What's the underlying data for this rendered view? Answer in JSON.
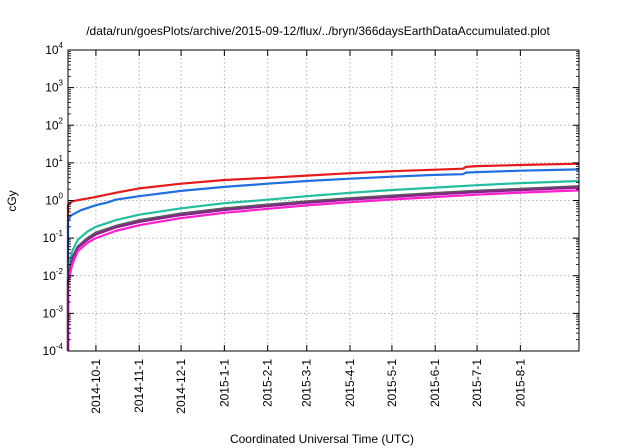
{
  "chart_data": {
    "type": "line",
    "title": "/data/run/goesPlots/archive/2015-09-12/flux/../bryn/366daysEarthDataAccumulated.plot",
    "xlabel": "Coordinated Universal Time (UTC)",
    "ylabel": "cGy",
    "y_scale": "log",
    "ylim": [
      0.0001,
      10000
    ],
    "xlim": [
      "2014-09-11",
      "2015-09-12"
    ],
    "grid": true,
    "legend": "none",
    "x_ticks": [
      "2014-10-1",
      "2014-11-1",
      "2014-12-1",
      "2015-1-1",
      "2015-2-1",
      "2015-3-1",
      "2015-4-1",
      "2015-5-1",
      "2015-6-1",
      "2015-7-1",
      "2015-8-1"
    ],
    "y_ticks": [
      {
        "value": 0.0001,
        "base": "10",
        "exp": "-4"
      },
      {
        "value": 0.001,
        "base": "10",
        "exp": "-3"
      },
      {
        "value": 0.01,
        "base": "10",
        "exp": "-2"
      },
      {
        "value": 0.1,
        "base": "10",
        "exp": "-1"
      },
      {
        "value": 1,
        "base": "10",
        "exp": "0"
      },
      {
        "value": 10,
        "base": "10",
        "exp": "1"
      },
      {
        "value": 100,
        "base": "10",
        "exp": "2"
      },
      {
        "value": 1000,
        "base": "10",
        "exp": "3"
      },
      {
        "value": 10000,
        "base": "10",
        "exp": "4"
      }
    ],
    "series": [
      {
        "color": "#e41a1c",
        "x": [
          "2014-09-11",
          "2014-09-14",
          "2014-09-20",
          "2014-10-01",
          "2014-10-15",
          "2014-11-01",
          "2014-12-01",
          "2015-01-01",
          "2015-02-01",
          "2015-03-01",
          "2015-04-01",
          "2015-05-01",
          "2015-06-01",
          "2015-06-21",
          "2015-06-23",
          "2015-07-01",
          "2015-08-01",
          "2015-09-12"
        ],
        "y": [
          0.75,
          0.95,
          1.05,
          1.25,
          1.6,
          2.1,
          2.8,
          3.5,
          4.0,
          4.6,
          5.3,
          6.0,
          6.6,
          7.0,
          7.8,
          8.2,
          8.8,
          9.5
        ]
      },
      {
        "color": "#1f6fe0",
        "x": [
          "2014-09-11",
          "2014-09-13",
          "2014-09-20",
          "2014-10-01",
          "2014-10-10",
          "2014-10-15",
          "2014-11-01",
          "2014-12-01",
          "2015-01-01",
          "2015-02-01",
          "2015-03-01",
          "2015-04-01",
          "2015-05-01",
          "2015-06-01",
          "2015-06-21",
          "2015-06-23",
          "2015-07-01",
          "2015-08-01",
          "2015-09-12"
        ],
        "y": [
          0.3,
          0.4,
          0.55,
          0.75,
          0.9,
          1.05,
          1.3,
          1.8,
          2.3,
          2.8,
          3.3,
          3.8,
          4.3,
          4.8,
          5.0,
          5.5,
          5.7,
          6.2,
          6.7
        ]
      },
      {
        "color": "#1fbf9f",
        "x": [
          "2014-09-11",
          "2014-09-12",
          "2014-09-14",
          "2014-09-18",
          "2014-09-25",
          "2014-10-01",
          "2014-10-15",
          "2014-11-01",
          "2014-12-01",
          "2015-01-01",
          "2015-02-01",
          "2015-03-01",
          "2015-04-01",
          "2015-05-01",
          "2015-06-01",
          "2015-07-01",
          "2015-08-01",
          "2015-09-12"
        ],
        "y": [
          0.012,
          0.02,
          0.045,
          0.09,
          0.15,
          0.2,
          0.3,
          0.42,
          0.62,
          0.85,
          1.05,
          1.3,
          1.6,
          1.9,
          2.2,
          2.55,
          2.9,
          3.3
        ]
      },
      {
        "color": "#5a5a5a",
        "x": [
          "2014-09-11",
          "2014-09-12",
          "2014-09-14",
          "2014-09-18",
          "2014-09-25",
          "2014-10-01",
          "2014-10-15",
          "2014-11-01",
          "2014-12-01",
          "2015-01-01",
          "2015-02-01",
          "2015-03-01",
          "2015-04-01",
          "2015-05-01",
          "2015-06-01",
          "2015-07-01",
          "2015-08-01",
          "2015-09-12"
        ],
        "y": [
          0.008,
          0.013,
          0.03,
          0.06,
          0.1,
          0.14,
          0.21,
          0.3,
          0.45,
          0.62,
          0.78,
          0.95,
          1.15,
          1.35,
          1.58,
          1.82,
          2.05,
          2.4
        ]
      },
      {
        "color": "#8e1f8e",
        "x": [
          "2014-09-11",
          "2014-09-12",
          "2014-09-14",
          "2014-09-18",
          "2014-09-25",
          "2014-10-01",
          "2014-10-15",
          "2014-11-01",
          "2014-12-01",
          "2015-01-01",
          "2015-02-01",
          "2015-03-01",
          "2015-04-01",
          "2015-05-01",
          "2015-06-01",
          "2015-07-01",
          "2015-08-01",
          "2015-09-12"
        ],
        "y": [
          0.007,
          0.012,
          0.027,
          0.055,
          0.09,
          0.125,
          0.19,
          0.27,
          0.41,
          0.56,
          0.71,
          0.87,
          1.05,
          1.24,
          1.45,
          1.67,
          1.88,
          2.2
        ]
      },
      {
        "color": "#ff1fcf",
        "x": [
          "2014-09-11",
          "2014-09-12",
          "2014-09-14",
          "2014-09-18",
          "2014-09-25",
          "2014-10-01",
          "2014-10-15",
          "2014-11-01",
          "2014-12-01",
          "2015-01-01",
          "2015-02-01",
          "2015-03-01",
          "2015-04-01",
          "2015-05-01",
          "2015-06-01",
          "2015-07-01",
          "2015-08-01",
          "2015-09-12"
        ],
        "y": [
          0.005,
          0.009,
          0.02,
          0.045,
          0.075,
          0.1,
          0.155,
          0.22,
          0.34,
          0.47,
          0.6,
          0.74,
          0.9,
          1.06,
          1.24,
          1.43,
          1.62,
          1.85
        ]
      }
    ]
  }
}
